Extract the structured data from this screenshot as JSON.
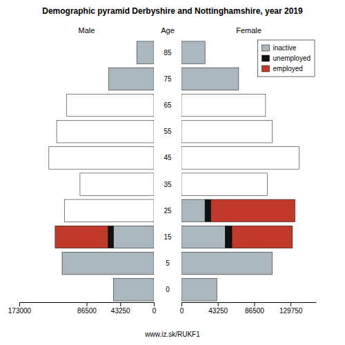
{
  "chart_data": {
    "type": "bar",
    "orientation": "horizontal",
    "stacked": true,
    "title": "Demographic pyramid Derbyshire and Nottinghamshire, year 2019",
    "ylabel": "Age",
    "categories": [
      "85",
      "75",
      "65",
      "55",
      "45",
      "35",
      "25",
      "15",
      "5",
      "0"
    ],
    "annotations": [
      "www.iz.sk/RUKF1"
    ],
    "panels": [
      {
        "title": "Male",
        "xlim": [
          173000,
          0
        ],
        "xticks": [
          173000,
          86500,
          43250,
          0
        ],
        "series": [
          {
            "name": "inactive",
            "color": "#aab7bf",
            "values": [
              22000,
              58000,
              0,
              0,
              0,
              0,
              0,
              52000,
              118000,
              52000
            ]
          },
          {
            "name": "unemployed",
            "color": "#111111",
            "values": [
              0,
              0,
              0,
              0,
              0,
              0,
              0,
              7000,
              0,
              0
            ]
          },
          {
            "name": "employed",
            "color": "#c0392b",
            "values": [
              0,
              0,
              0,
              0,
              0,
              0,
              0,
              68000,
              0,
              0
            ]
          },
          {
            "color": "#ffffff",
            "values": [
              0,
              0,
              112000,
              125000,
              135000,
              95000,
              115000,
              0,
              0,
              0
            ]
          }
        ]
      },
      {
        "title": "Female",
        "xlim": [
          0,
          160000
        ],
        "xticks": [
          0,
          43250,
          86500,
          129750
        ],
        "legend": "upper right",
        "series": [
          {
            "name": "inactive",
            "color": "#aab7bf",
            "values": [
              28000,
              68000,
              0,
              0,
              0,
              0,
              28000,
              52000,
              108000,
              42000
            ]
          },
          {
            "name": "unemployed",
            "color": "#111111",
            "values": [
              0,
              0,
              0,
              0,
              0,
              0,
              7000,
              8000,
              0,
              0
            ]
          },
          {
            "name": "employed",
            "color": "#c0392b",
            "values": [
              0,
              0,
              0,
              0,
              0,
              0,
              100000,
              72000,
              0,
              0
            ]
          },
          {
            "color": "#ffffff",
            "values": [
              0,
              0,
              100000,
              108000,
              140000,
              102000,
              0,
              0,
              0,
              0
            ]
          }
        ]
      }
    ]
  }
}
